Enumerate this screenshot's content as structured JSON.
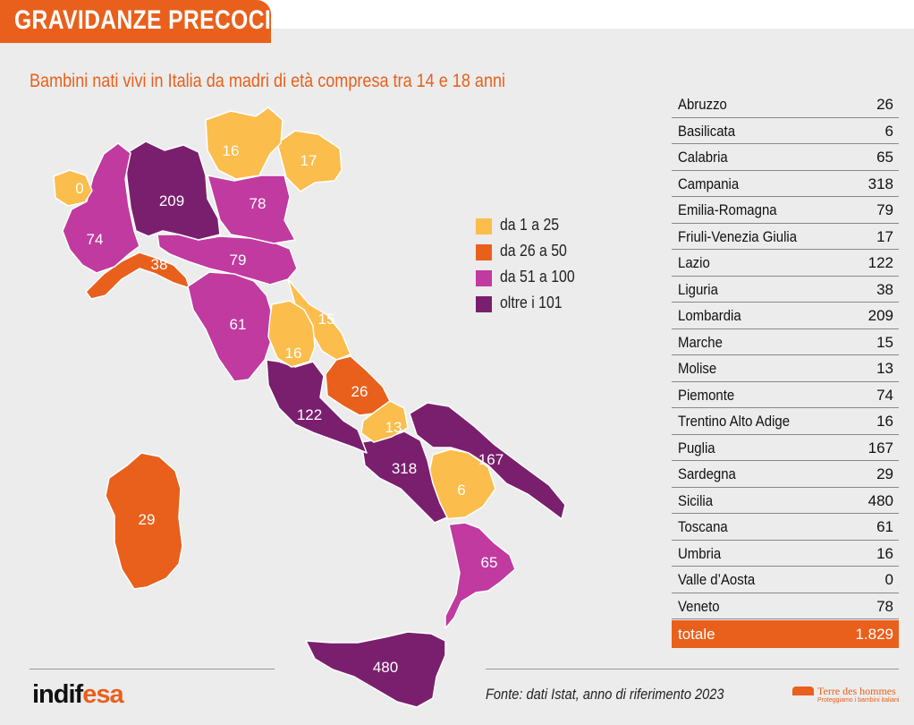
{
  "header": {
    "title": "GRAVIDANZE PRECOCI"
  },
  "subtitle": "Bambini nati vivi in Italia da madri di età compresa tra 14 e 18 anni",
  "colors": {
    "bin1": "#fbbd4c",
    "bin2": "#e8601c",
    "bin3": "#c03aa0",
    "bin4": "#7a1f6e",
    "accent": "#e8601c",
    "background": "#ececec"
  },
  "legend": [
    {
      "label": "da 1 a 25",
      "color": "#fbbd4c"
    },
    {
      "label": "da 26 a 50",
      "color": "#e8601c"
    },
    {
      "label": "da 51 a 100",
      "color": "#c03aa0"
    },
    {
      "label": "oltre i 101",
      "color": "#7a1f6e"
    }
  ],
  "chart_data": {
    "type": "table",
    "title": "GRAVIDANZE PRECOCI",
    "subtitle": "Bambini nati vivi in Italia da madri di età compresa tra 14 e 18 anni",
    "categories": [
      "Abruzzo",
      "Basilicata",
      "Calabria",
      "Campania",
      "Emilia-Romagna",
      "Friuli-Venezia Giulia",
      "Lazio",
      "Liguria",
      "Lombardia",
      "Marche",
      "Molise",
      "Piemonte",
      "Trentino Alto Adige",
      "Puglia",
      "Sardegna",
      "Sicilia",
      "Toscana",
      "Umbria",
      "Valle d’Aosta",
      "Veneto"
    ],
    "values": [
      26,
      6,
      65,
      318,
      79,
      17,
      122,
      38,
      209,
      15,
      13,
      74,
      16,
      167,
      29,
      480,
      61,
      16,
      0,
      78
    ],
    "value_labels": [
      "26",
      "6",
      "65",
      "318",
      "79",
      "17",
      "122",
      "38",
      "209",
      "15",
      "13",
      "74",
      "16",
      "167",
      "29",
      "480",
      "61",
      "16",
      "0",
      "78"
    ],
    "total_label": "totale",
    "total_value": "1.829"
  },
  "footer": {
    "source": "Fonte: dati Istat, anno di riferimento 2023",
    "logo_left_a": "indif",
    "logo_left_b": "esa",
    "logo_right_brand": "Terre des hommes",
    "logo_right_tagline": "Proteggiamo i bambini italiani"
  }
}
